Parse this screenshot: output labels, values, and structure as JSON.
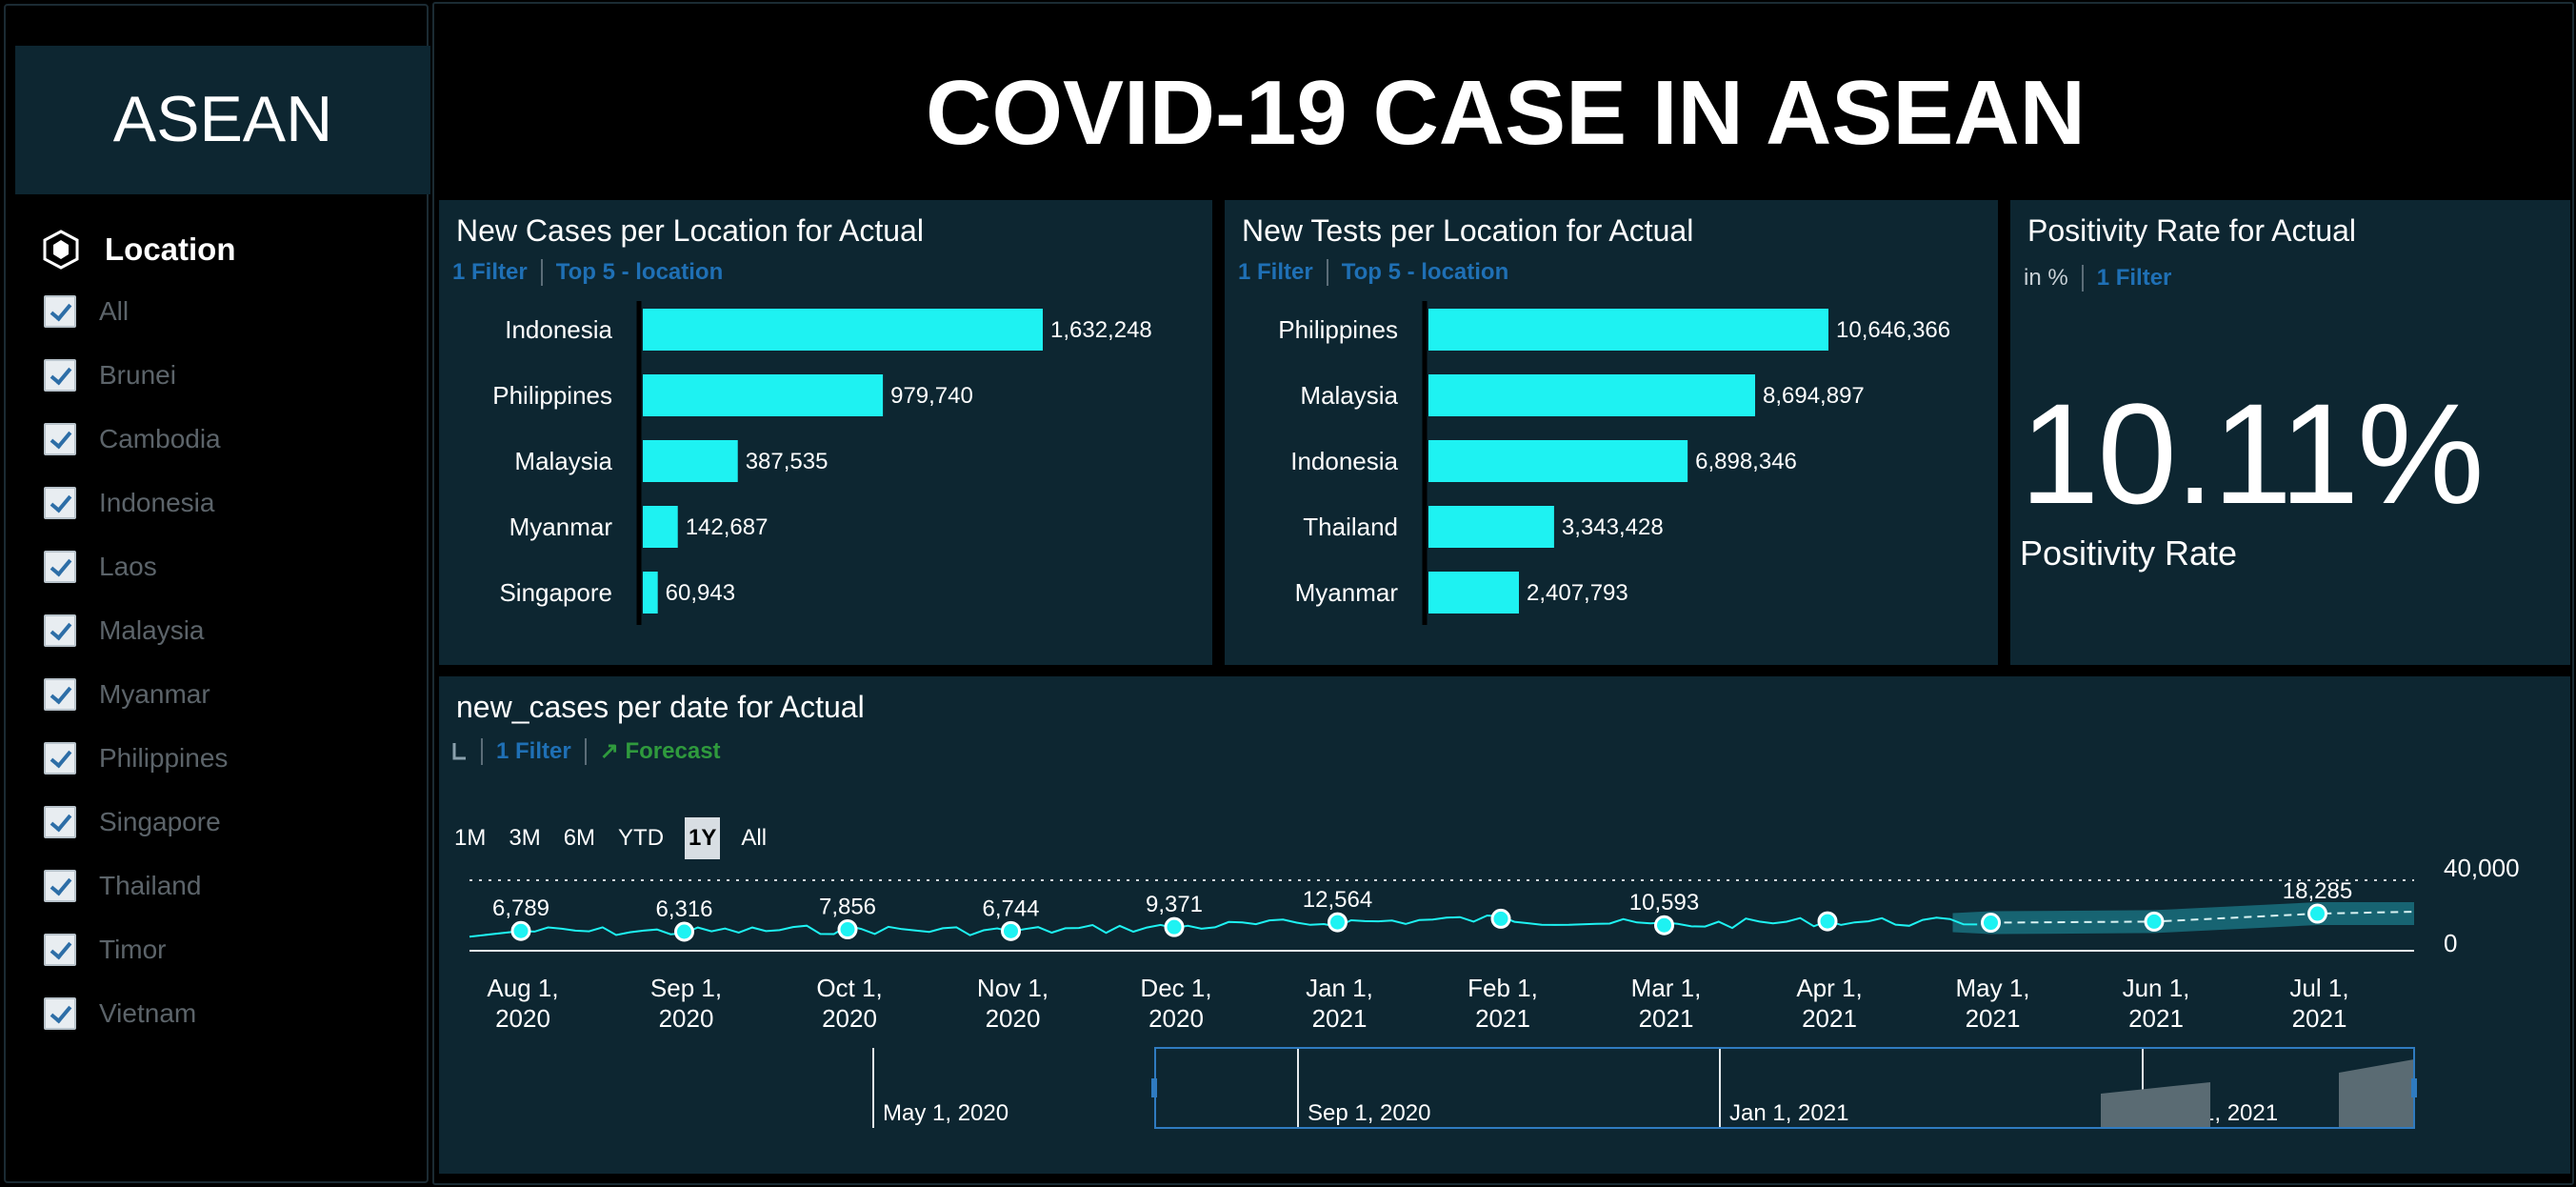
{
  "sidebar": {
    "brand": "ASEAN",
    "filter_title": "Location",
    "items": [
      {
        "label": "All",
        "checked": true
      },
      {
        "label": "Brunei",
        "checked": true
      },
      {
        "label": "Cambodia",
        "checked": true
      },
      {
        "label": "Indonesia",
        "checked": true
      },
      {
        "label": "Laos",
        "checked": true
      },
      {
        "label": "Malaysia",
        "checked": true
      },
      {
        "label": "Myanmar",
        "checked": true
      },
      {
        "label": "Philippines",
        "checked": true
      },
      {
        "label": "Singapore",
        "checked": true
      },
      {
        "label": "Thailand",
        "checked": true
      },
      {
        "label": "Timor",
        "checked": true
      },
      {
        "label": "Vietnam",
        "checked": true
      }
    ]
  },
  "header": {
    "title": "COVID-19 CASE IN ASEAN"
  },
  "colors": {
    "bar": "#1ef2f2",
    "tile": "#0d2631",
    "link": "#1f70b5",
    "forecast": "#2f9a3d"
  },
  "tiles": {
    "cases": {
      "title": "New Cases per Location for Actual",
      "filter": "1 Filter",
      "rank": "Top 5 - location"
    },
    "tests": {
      "title": "New Tests per Location for Actual",
      "filter": "1 Filter",
      "rank": "Top 5 - location"
    },
    "positivity": {
      "title": "Positivity Rate for Actual",
      "unit": "in %",
      "filter": "1 Filter",
      "value": "10.11%",
      "label": "Positivity Rate"
    },
    "timeline": {
      "title": "new_cases per date for Actual",
      "filter": "1 Filter",
      "forecast": "Forecast",
      "ranges": [
        "1M",
        "3M",
        "6M",
        "YTD",
        "1Y",
        "All"
      ],
      "active_range": "1Y"
    }
  },
  "chart_data": [
    {
      "type": "bar",
      "orientation": "horizontal",
      "categories": [
        "Indonesia",
        "Philippines",
        "Malaysia",
        "Myanmar",
        "Singapore"
      ],
      "values": [
        1632248,
        979740,
        387535,
        142687,
        60943
      ],
      "labels": [
        "1,632,248",
        "979,740",
        "387,535",
        "142,687",
        "60,943"
      ]
    },
    {
      "type": "bar",
      "orientation": "horizontal",
      "categories": [
        "Philippines",
        "Malaysia",
        "Indonesia",
        "Thailand",
        "Myanmar"
      ],
      "values": [
        10646366,
        8694897,
        6898346,
        3343428,
        2407793
      ],
      "labels": [
        "10,646,366",
        "8,694,897",
        "6,898,346",
        "3,343,428",
        "2,407,793"
      ]
    },
    {
      "type": "line",
      "x_ticks": [
        "Aug 1, 2020",
        "Sep 1, 2020",
        "Oct 1, 2020",
        "Nov 1, 2020",
        "Dec 1, 2020",
        "Jan 1, 2021",
        "Feb 1, 2021",
        "Mar 1, 2021",
        "Apr 1, 2021",
        "May 1, 2021",
        "Jun 1, 2021",
        "Jul 1, 2021"
      ],
      "y_ticks": [
        "40,000",
        "0"
      ],
      "ylim": [
        0,
        40000
      ],
      "points": [
        {
          "x": "Aug 1, 2020",
          "y": 6789,
          "label": "6,789"
        },
        {
          "x": "Sep 1, 2020",
          "y": 6316,
          "label": "6,316"
        },
        {
          "x": "Oct 1, 2020",
          "y": 7856,
          "label": "7,856"
        },
        {
          "x": "Nov 1, 2020",
          "y": 6744,
          "label": "6,744"
        },
        {
          "x": "Dec 1, 2020",
          "y": 9371,
          "label": "9,371"
        },
        {
          "x": "Jan 1, 2021",
          "y": 12564,
          "label": "12,564"
        },
        {
          "x": "Feb 1, 2021",
          "y": 14900,
          "label": ""
        },
        {
          "x": "Mar 1, 2021",
          "y": 10593,
          "label": "10,593"
        },
        {
          "x": "Apr 1, 2021",
          "y": 13200,
          "label": ""
        },
        {
          "x": "May 1, 2021",
          "y": 12300,
          "label": ""
        },
        {
          "x": "Jun 1, 2021",
          "y": 13000,
          "label": ""
        },
        {
          "x": "Jul 1, 2021",
          "y": 18285,
          "label": "18,285"
        }
      ],
      "forecast_start": "May 1, 2021",
      "navigator_labels": [
        "May 1, 2020",
        "Sep 1, 2020",
        "Jan 1, 2021",
        "May 1, 2021"
      ]
    }
  ]
}
